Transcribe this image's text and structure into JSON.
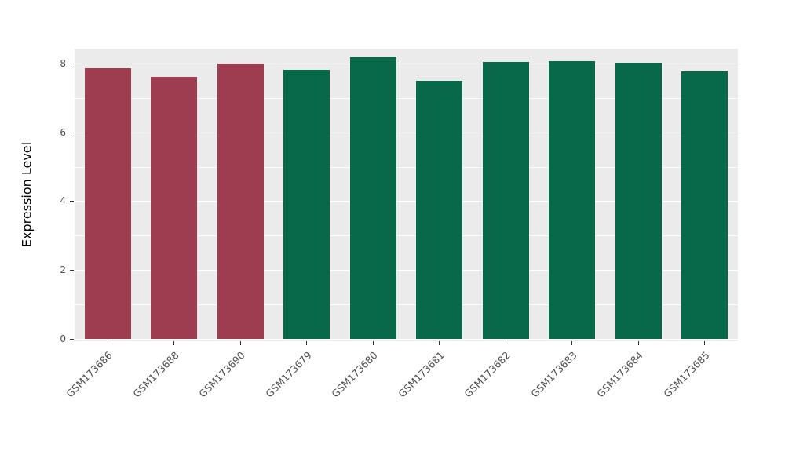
{
  "chart_data": {
    "type": "bar",
    "title": "",
    "xlabel": "",
    "ylabel": "Expression Level",
    "categories": [
      "GSM173686",
      "GSM173688",
      "GSM173690",
      "GSM173679",
      "GSM173680",
      "GSM173681",
      "GSM173682",
      "GSM173683",
      "GSM173684",
      "GSM173685"
    ],
    "values": [
      7.85,
      7.61,
      8.0,
      7.81,
      8.18,
      7.5,
      8.04,
      8.06,
      8.02,
      7.77
    ],
    "bar_colors": [
      "#9e3d50",
      "#9e3d50",
      "#9e3d50",
      "#07694a",
      "#07694a",
      "#07694a",
      "#07694a",
      "#07694a",
      "#07694a",
      "#07694a"
    ],
    "group_colors": {
      "first_group": "#9e3d50",
      "second_group": "#07694a"
    },
    "ylim": [
      0,
      8.43
    ],
    "yticks": [
      0,
      2,
      4,
      6,
      8
    ],
    "minor_ticks": [
      1,
      3,
      5,
      7
    ],
    "panel_bg": "#ebebeb",
    "grid_color": "#ffffff",
    "legend": "none",
    "grid": "on"
  }
}
